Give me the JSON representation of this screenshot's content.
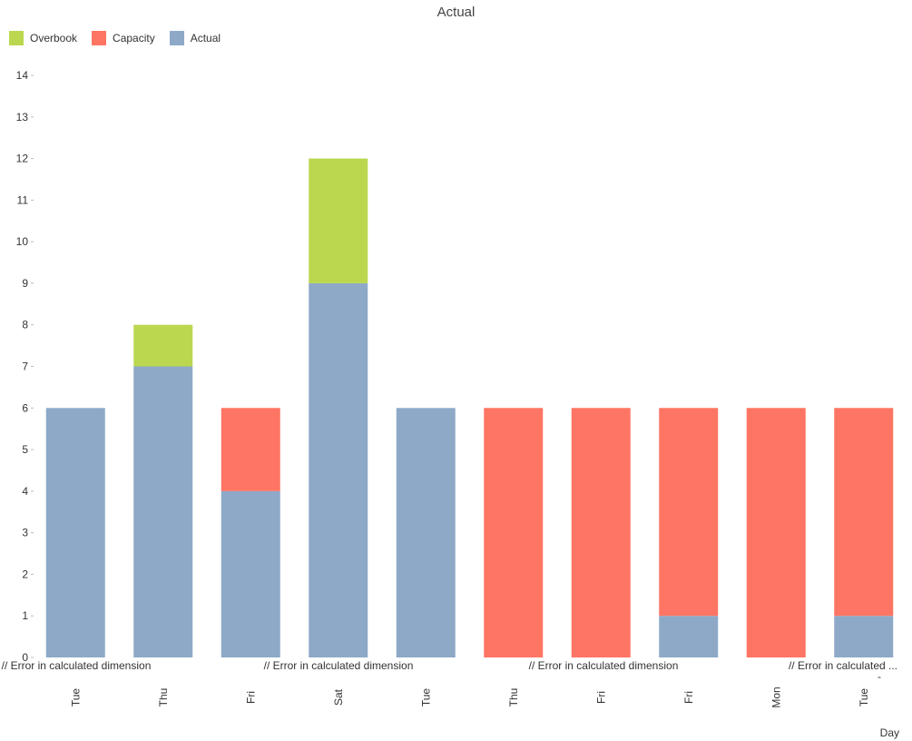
{
  "chart_data": {
    "type": "bar",
    "stacked": true,
    "title": "Actual",
    "xlabel": "Day",
    "ylabel": "",
    "ylim": [
      0,
      14
    ],
    "yticks": [
      0,
      1,
      2,
      3,
      4,
      5,
      6,
      7,
      8,
      9,
      10,
      11,
      12,
      13,
      14
    ],
    "categories": [
      "Tue",
      "Thu",
      "Fri",
      "Sat",
      "Tue",
      "Thu",
      "Fri",
      "Fri",
      "Mon",
      "Tue"
    ],
    "series": [
      {
        "name": "Actual",
        "color": "#8EA9C8",
        "values": [
          6,
          7,
          4,
          9,
          6,
          0,
          0,
          1,
          0,
          1
        ]
      },
      {
        "name": "Capacity",
        "color": "#FF7563",
        "values": [
          0,
          0,
          2,
          0,
          0,
          6,
          6,
          5,
          6,
          5
        ]
      },
      {
        "name": "Overbook",
        "color": "#BAD74F",
        "values": [
          0,
          1,
          0,
          3,
          0,
          0,
          0,
          0,
          0,
          0
        ]
      }
    ],
    "legend": {
      "position": "top-left",
      "order": [
        "Overbook",
        "Capacity",
        "Actual"
      ]
    },
    "group_labels": [
      "// Error in calculated dimension",
      "// Error in calculated dimension",
      "// Error in calculated dimension",
      "// Error in calculated ..."
    ],
    "extra_label": "-",
    "grid": false
  }
}
